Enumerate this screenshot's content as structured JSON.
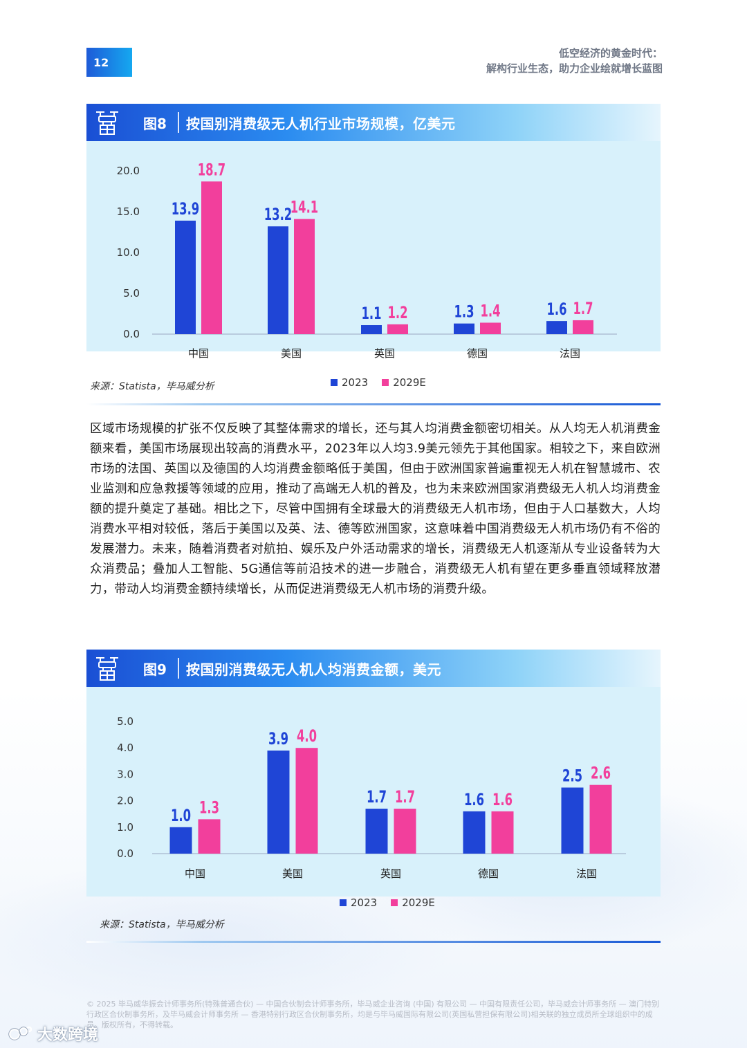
{
  "page": {
    "number": "12",
    "running_title_line1": "低空经济的黄金时代：",
    "running_title_line2": "解构行业生态，助力企业绘就增长蓝图"
  },
  "colors": {
    "series_2023": "#1f45d6",
    "series_2029": "#f23f9c",
    "panel": "#d8f1fb"
  },
  "figures": [
    {
      "label": "图8",
      "title": "按国别消费级无人机行业市场规模，亿美元",
      "icon": "drone-package-icon",
      "source": "来源：Statista，毕马威分析",
      "legend": [
        "2023",
        "2029E"
      ]
    },
    {
      "label": "图9",
      "title": "按国别消费级无人机人均消费金额，美元",
      "icon": "drone-package-icon",
      "source": "来源：Statista，毕马威分析",
      "legend": [
        "2023",
        "2029E"
      ]
    }
  ],
  "paragraph": "区域市场规模的扩张不仅反映了其整体需求的增长，还与其人均消费金额密切相关。从人均无人机消费金额来看，美国市场展现出较高的消费水平，2023年以人均3.9美元领先于其他国家。相较之下，来自欧洲市场的法国、英国以及德国的人均消费金额略低于美国，但由于欧洲国家普遍重视无人机在智慧城市、农业监测和应急救援等领域的应用，推动了高端无人机的普及，也为未来欧洲国家消费级无人机人均消费金额的提升奠定了基础。相比之下，尽管中国拥有全球最大的消费级无人机市场，但由于人口基数大，人均消费水平相对较低，落后于美国以及英、法、德等欧洲国家，这意味着中国消费级无人机市场仍有不俗的发展潜力。未来，随着消费者对航拍、娱乐及户外活动需求的增长，消费级无人机逐渐从专业设备转为大众消费品；叠加人工智能、5G通信等前沿技术的进一步融合，消费级无人机有望在更多垂直领域释放潜力，带动人均消费金额持续增长，从而促进消费级无人机市场的消费升级。",
  "footer": "© 2025 毕马威华振会计师事务所(特殊普通合伙) — 中国合伙制会计师事务所，毕马威企业咨询 (中国) 有限公司 — 中国有限责任公司，毕马威会计师事务所 — 澳门特别行政区合伙制事务所，及毕马威会计师事务所 — 香港特别行政区合伙制事务所，均是与毕马威国际有限公司(英国私营担保有限公司)相关联的独立成员所全球组织中的成员。版权所有，不得转载。",
  "watermark": "大数跨境",
  "chart_data": [
    {
      "type": "bar",
      "title": "按国别消费级无人机行业市场规模，亿美元",
      "categories": [
        "中国",
        "美国",
        "英国",
        "德国",
        "法国"
      ],
      "series": [
        {
          "name": "2023",
          "values": [
            13.9,
            13.2,
            1.1,
            1.3,
            1.6
          ],
          "labels": [
            "13.9",
            "13.2",
            "1.1",
            "1.3",
            "1.6"
          ]
        },
        {
          "name": "2029E",
          "values": [
            18.7,
            14.1,
            1.2,
            1.4,
            1.7
          ],
          "labels": [
            "18.7",
            "14.1",
            "1.2",
            "1.4",
            "1.7"
          ]
        }
      ],
      "y_ticks": [
        "0.0",
        "5.0",
        "10.0",
        "15.0",
        "20.0"
      ],
      "ylim": [
        0,
        20
      ],
      "grid": false,
      "legend_position": "bottom"
    },
    {
      "type": "bar",
      "title": "按国别消费级无人机人均消费金额，美元",
      "categories": [
        "中国",
        "美国",
        "英国",
        "德国",
        "法国"
      ],
      "series": [
        {
          "name": "2023",
          "values": [
            1.0,
            3.9,
            1.7,
            1.6,
            2.5
          ],
          "labels": [
            "1.0",
            "3.9",
            "1.7",
            "1.6",
            "2.5"
          ]
        },
        {
          "name": "2029E",
          "values": [
            1.3,
            4.0,
            1.7,
            1.6,
            2.6
          ],
          "labels": [
            "1.3",
            "4.0",
            "1.7",
            "1.6",
            "2.6"
          ]
        }
      ],
      "y_ticks": [
        "0.0",
        "1.0",
        "2.0",
        "3.0",
        "4.0",
        "5.0"
      ],
      "ylim": [
        0,
        5
      ],
      "grid": false,
      "legend_position": "bottom"
    }
  ]
}
